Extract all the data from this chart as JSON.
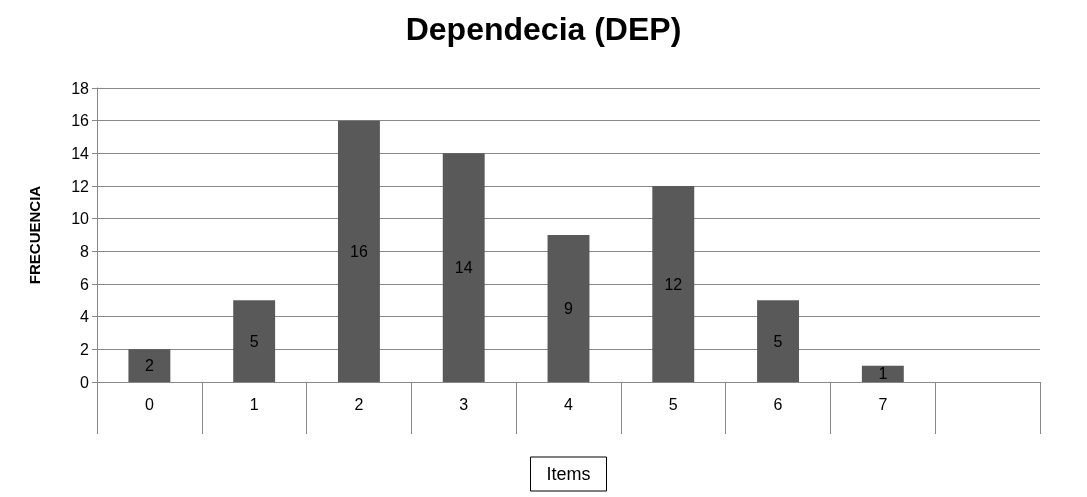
{
  "chart_data": {
    "type": "bar",
    "title": "Dependecia (DEP)",
    "xlabel": "Items",
    "ylabel": "FRECUENCIA",
    "categories": [
      "0",
      "1",
      "2",
      "3",
      "4",
      "5",
      "6",
      "7",
      null
    ],
    "values": [
      2,
      5,
      16,
      14,
      9,
      12,
      5,
      1,
      null
    ],
    "color": "#595959",
    "ylim": [
      0,
      18
    ],
    "yticks": [
      0,
      2,
      4,
      6,
      8,
      10,
      12,
      14,
      16,
      18
    ],
    "grid": "y",
    "data_labels": true
  }
}
